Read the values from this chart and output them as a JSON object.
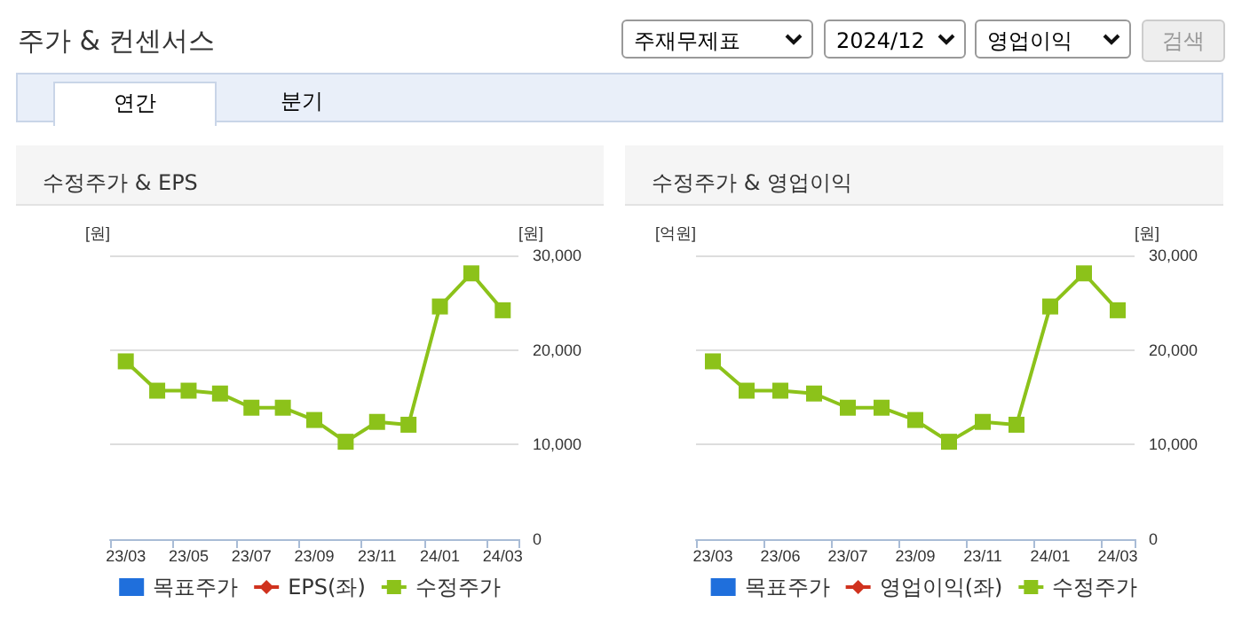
{
  "chart_data": [
    {
      "type": "line",
      "title": "수정주가 & EPS",
      "ylabel": "[원]",
      "y2label": "[원]",
      "annotations": [
        "주가 & 컨센서스",
        "주재무제표",
        "2024/12",
        "영업이익",
        "검색",
        "연간",
        "분기"
      ],
      "categories": [
        "23/03",
        null,
        "23/05",
        null,
        "23/07",
        null,
        "23/09",
        null,
        "23/11",
        null,
        "24/01",
        null,
        "24/03"
      ],
      "series": [
        {
          "name": "목표주가",
          "type": "bar",
          "color": "#1f6fdc",
          "values": [
            null,
            null,
            null,
            null,
            null,
            null,
            null,
            null,
            null,
            null,
            null,
            null,
            null
          ]
        },
        {
          "name": "EPS(좌)",
          "marker": "diamond",
          "color": "#d0321e",
          "values": [
            null,
            null,
            null,
            null,
            null,
            null,
            null,
            null,
            null,
            null,
            null,
            null,
            null
          ]
        },
        {
          "name": "수정주가",
          "type": "line",
          "marker": "square",
          "axis": "y2",
          "color": "#8cc21a",
          "values": [
            18800,
            15700,
            15700,
            15400,
            13900,
            13900,
            12600,
            10300,
            12400,
            12100,
            24600,
            28100,
            24200
          ]
        }
      ],
      "y2lim": [
        0,
        30000
      ],
      "y2ticks": [
        {
          "value": 0,
          "label": "0"
        },
        {
          "value": 10000,
          "label": "10,000"
        },
        {
          "value": 20000,
          "label": "20,000"
        },
        {
          "value": 30000,
          "label": "30,000"
        }
      ],
      "grid": "y",
      "legend": "bottom"
    },
    {
      "type": "line",
      "title": "수정주가 & 영업이익",
      "ylabel": "[억원]",
      "y2label": "[원]",
      "categories": [
        "23/03",
        null,
        "23/06",
        null,
        "23/07",
        null,
        "23/09",
        null,
        "23/11",
        null,
        "24/01",
        null,
        "24/03"
      ],
      "series": [
        {
          "name": "목표주가",
          "type": "bar",
          "color": "#1f6fdc",
          "values": [
            null,
            null,
            null,
            null,
            null,
            null,
            null,
            null,
            null,
            null,
            null,
            null,
            null
          ]
        },
        {
          "name": "영업이익(좌)",
          "marker": "diamond",
          "color": "#d0321e",
          "values": [
            null,
            null,
            null,
            null,
            null,
            null,
            null,
            null,
            null,
            null,
            null,
            null,
            null
          ]
        },
        {
          "name": "수정주가",
          "type": "line",
          "marker": "square",
          "axis": "y2",
          "color": "#8cc21a",
          "values": [
            18800,
            15700,
            15700,
            15400,
            13900,
            13900,
            12600,
            10300,
            12400,
            12100,
            24600,
            28100,
            24200
          ]
        }
      ],
      "y2lim": [
        0,
        30000
      ],
      "y2ticks": [
        {
          "value": 0,
          "label": "0"
        },
        {
          "value": 10000,
          "label": "10,000"
        },
        {
          "value": 20000,
          "label": "20,000"
        },
        {
          "value": 30000,
          "label": "30,000"
        }
      ],
      "grid": "y",
      "legend": "bottom"
    }
  ]
}
